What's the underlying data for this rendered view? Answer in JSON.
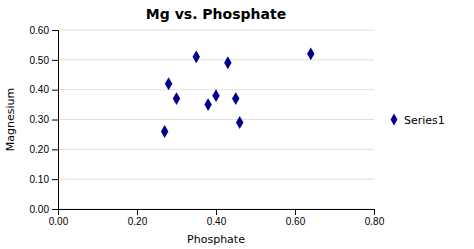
{
  "chart_data": {
    "type": "scatter",
    "title": "Mg vs. Phosphate",
    "xlabel": "Phosphate",
    "ylabel": "Magnesium",
    "series": [
      {
        "name": "Series1",
        "color": "#00008B",
        "marker": "diamond",
        "x": [
          0.28,
          0.3,
          0.27,
          0.35,
          0.38,
          0.4,
          0.43,
          0.45,
          0.46,
          0.64
        ],
        "values": [
          0.42,
          0.37,
          0.26,
          0.51,
          0.35,
          0.38,
          0.49,
          0.37,
          0.29,
          0.52
        ]
      }
    ],
    "xlim": [
      0.0,
      0.8
    ],
    "ylim": [
      0.0,
      0.6
    ],
    "xticks": [
      {
        "value": 0.0,
        "label": "0.00"
      },
      {
        "value": 0.2,
        "label": "0.20"
      },
      {
        "value": 0.4,
        "label": "0.40"
      },
      {
        "value": 0.6,
        "label": "0.60"
      },
      {
        "value": 0.8,
        "label": "0.80"
      }
    ],
    "yticks": [
      {
        "value": 0.0,
        "label": "0.00"
      },
      {
        "value": 0.1,
        "label": "0.10"
      },
      {
        "value": 0.2,
        "label": "0.20"
      },
      {
        "value": 0.3,
        "label": "0.30"
      },
      {
        "value": 0.4,
        "label": "0.40"
      },
      {
        "value": 0.5,
        "label": "0.50"
      },
      {
        "value": 0.6,
        "label": "0.60"
      }
    ],
    "grid": true,
    "legend": "right"
  }
}
